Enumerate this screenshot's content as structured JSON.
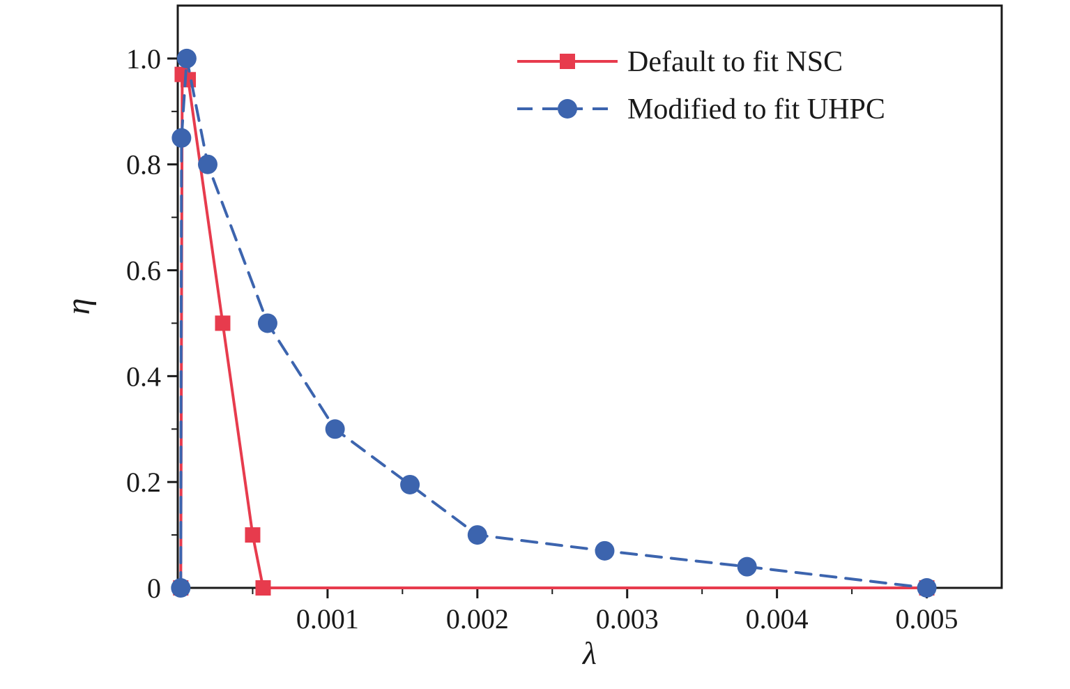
{
  "figure": {
    "background": "#ffffff"
  },
  "chart_data": {
    "type": "line",
    "title": "",
    "xlabel": "λ",
    "ylabel": "η",
    "xlim": [
      0,
      0.0055
    ],
    "ylim": [
      0,
      1.1
    ],
    "grid": false,
    "legend_position": "top-right-inside",
    "axis_color": "#1a1a1a",
    "xticks": [
      0.001,
      0.002,
      0.003,
      0.004,
      0.005
    ],
    "xtick_labels": [
      "0.001",
      "0.002",
      "0.003",
      "0.004",
      "0.005"
    ],
    "xtick_minor_step": 0.0005,
    "yticks": [
      0,
      0.2,
      0.4,
      0.6,
      0.8,
      1.0
    ],
    "ytick_labels": [
      "0",
      "0.2",
      "0.4",
      "0.6",
      "0.8",
      "1.0"
    ],
    "ytick_minor_step": 0.1,
    "series": [
      {
        "name": "Default to fit NSC",
        "color": "#e73b4d",
        "line_style": "solid",
        "marker": "square",
        "points": [
          [
            2e-05,
            0
          ],
          [
            3e-05,
            0.97
          ],
          [
            7e-05,
            0.96
          ],
          [
            0.0003,
            0.5
          ],
          [
            0.0005,
            0.1
          ],
          [
            0.00057,
            0
          ],
          [
            0.005,
            0
          ]
        ]
      },
      {
        "name": "Modified to fit UHPC",
        "color": "#3c64ae",
        "line_style": "dashed",
        "marker": "circle",
        "points": [
          [
            2e-05,
            0
          ],
          [
            2.5e-05,
            0.85
          ],
          [
            6e-05,
            1.0
          ],
          [
            0.0002,
            0.8
          ],
          [
            0.0006,
            0.5
          ],
          [
            0.00105,
            0.3
          ],
          [
            0.00155,
            0.195
          ],
          [
            0.002,
            0.1
          ],
          [
            0.00285,
            0.07
          ],
          [
            0.0038,
            0.04
          ],
          [
            0.005,
            0
          ]
        ]
      }
    ]
  }
}
